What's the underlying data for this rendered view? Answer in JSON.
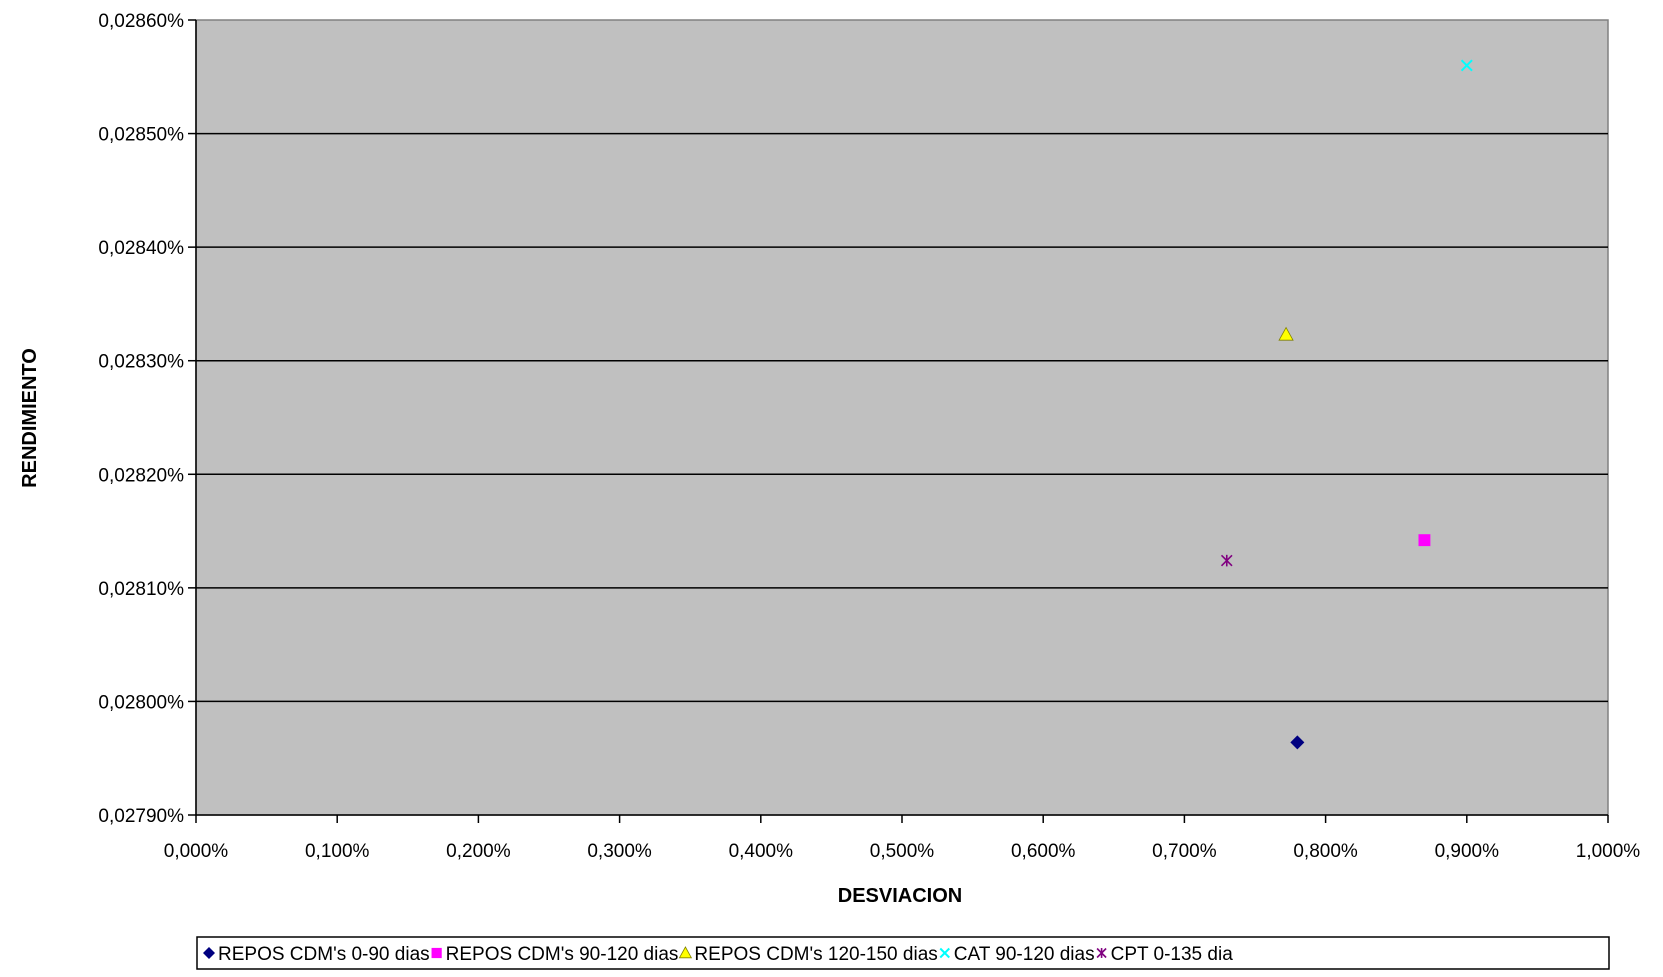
{
  "chart_data": {
    "type": "scatter",
    "title": "",
    "xlabel": "DESVIACION",
    "ylabel": "RENDIMIENTO",
    "xlim": [
      0.0,
      1.0
    ],
    "ylim": [
      0.0279,
      0.0286
    ],
    "x_ticks": [
      0.0,
      0.1,
      0.2,
      0.3,
      0.4,
      0.5,
      0.6,
      0.7,
      0.8,
      0.9,
      1.0
    ],
    "x_tick_labels": [
      "0,000%",
      "0,100%",
      "0,200%",
      "0,300%",
      "0,400%",
      "0,500%",
      "0,600%",
      "0,700%",
      "0,800%",
      "0,900%",
      "1,000%"
    ],
    "y_ticks": [
      0.0279,
      0.028,
      0.0281,
      0.0282,
      0.0283,
      0.0284,
      0.0285,
      0.0286
    ],
    "y_tick_labels": [
      "0,02790%",
      "0,02800%",
      "0,02810%",
      "0,02820%",
      "0,02830%",
      "0,02840%",
      "0,02850%",
      "0,02860%"
    ],
    "grid": "horizontal",
    "plot_background": "#c0c0c0",
    "legend_position": "bottom",
    "series": [
      {
        "name": "REPOS CDM's 0-90 dias",
        "marker": "diamond",
        "color": "#000080",
        "x": [
          0.78
        ],
        "y": [
          0.027964
        ]
      },
      {
        "name": "REPOS CDM's 90-120 dias",
        "marker": "square",
        "color": "#ff00ff",
        "x": [
          0.87
        ],
        "y": [
          0.028142
        ]
      },
      {
        "name": "REPOS CDM's 120-150 dias",
        "marker": "triangle",
        "color": "#ffff00",
        "x": [
          0.772
        ],
        "y": [
          0.028323
        ]
      },
      {
        "name": "CAT 90-120 dias",
        "marker": "x",
        "color": "#00ffff",
        "x": [
          0.9
        ],
        "y": [
          0.02856
        ]
      },
      {
        "name": "CPT 0-135 dia",
        "marker": "star",
        "color": "#800080",
        "x": [
          0.73
        ],
        "y": [
          0.028124
        ]
      }
    ]
  }
}
